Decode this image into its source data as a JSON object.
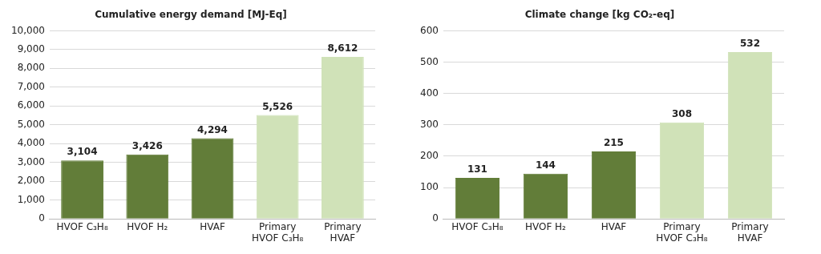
{
  "chart_data": [
    {
      "type": "bar",
      "title": "Cumulative energy demand [MJ-Eq]",
      "categories": [
        "HVOF C₃H₈",
        "HVOF H₂",
        "HVAF",
        "Primary\nHVOF C₃H₈",
        "Primary\nHVAF"
      ],
      "values": [
        3104,
        3426,
        4294,
        5526,
        8612
      ],
      "value_labels": [
        "3,104",
        "3,426",
        "4,294",
        "5,526",
        "8,612"
      ],
      "colors": [
        "#627d39",
        "#627d39",
        "#627d39",
        "#d0e2b8",
        "#d0e2b8"
      ],
      "ylim": [
        0,
        10000
      ],
      "yticks": [
        0,
        {
          "value": 1000,
          "label": "1,000"
        },
        {
          "value": 2000,
          "label": "2,000"
        },
        {
          "value": 3000,
          "label": "3,000"
        },
        {
          "value": 4000,
          "label": "4,000"
        },
        {
          "value": 5000,
          "label": "5,000"
        },
        {
          "value": 6000,
          "label": "6,000"
        },
        {
          "value": 7000,
          "label": "7,000"
        },
        {
          "value": 8000,
          "label": "8,000"
        },
        {
          "value": 9000,
          "label": "9,000"
        },
        {
          "value": 10000,
          "label": "10,000"
        }
      ],
      "grid": "y"
    },
    {
      "type": "bar",
      "title": "Climate change [kg CO₂-eq]",
      "categories": [
        "HVOF C₃H₈",
        "HVOF H₂",
        "HVAF",
        "Primary\nHVOF C₃H₈",
        "Primary\nHVAF"
      ],
      "values": [
        131,
        144,
        215,
        308,
        532
      ],
      "colors": [
        "#627d39",
        "#627d39",
        "#627d39",
        "#d0e2b8",
        "#d0e2b8"
      ],
      "ylim": [
        0,
        600
      ],
      "yticks": [
        0,
        100,
        200,
        300,
        400,
        500,
        600
      ],
      "grid": "y",
      "data_labels": true
    }
  ]
}
